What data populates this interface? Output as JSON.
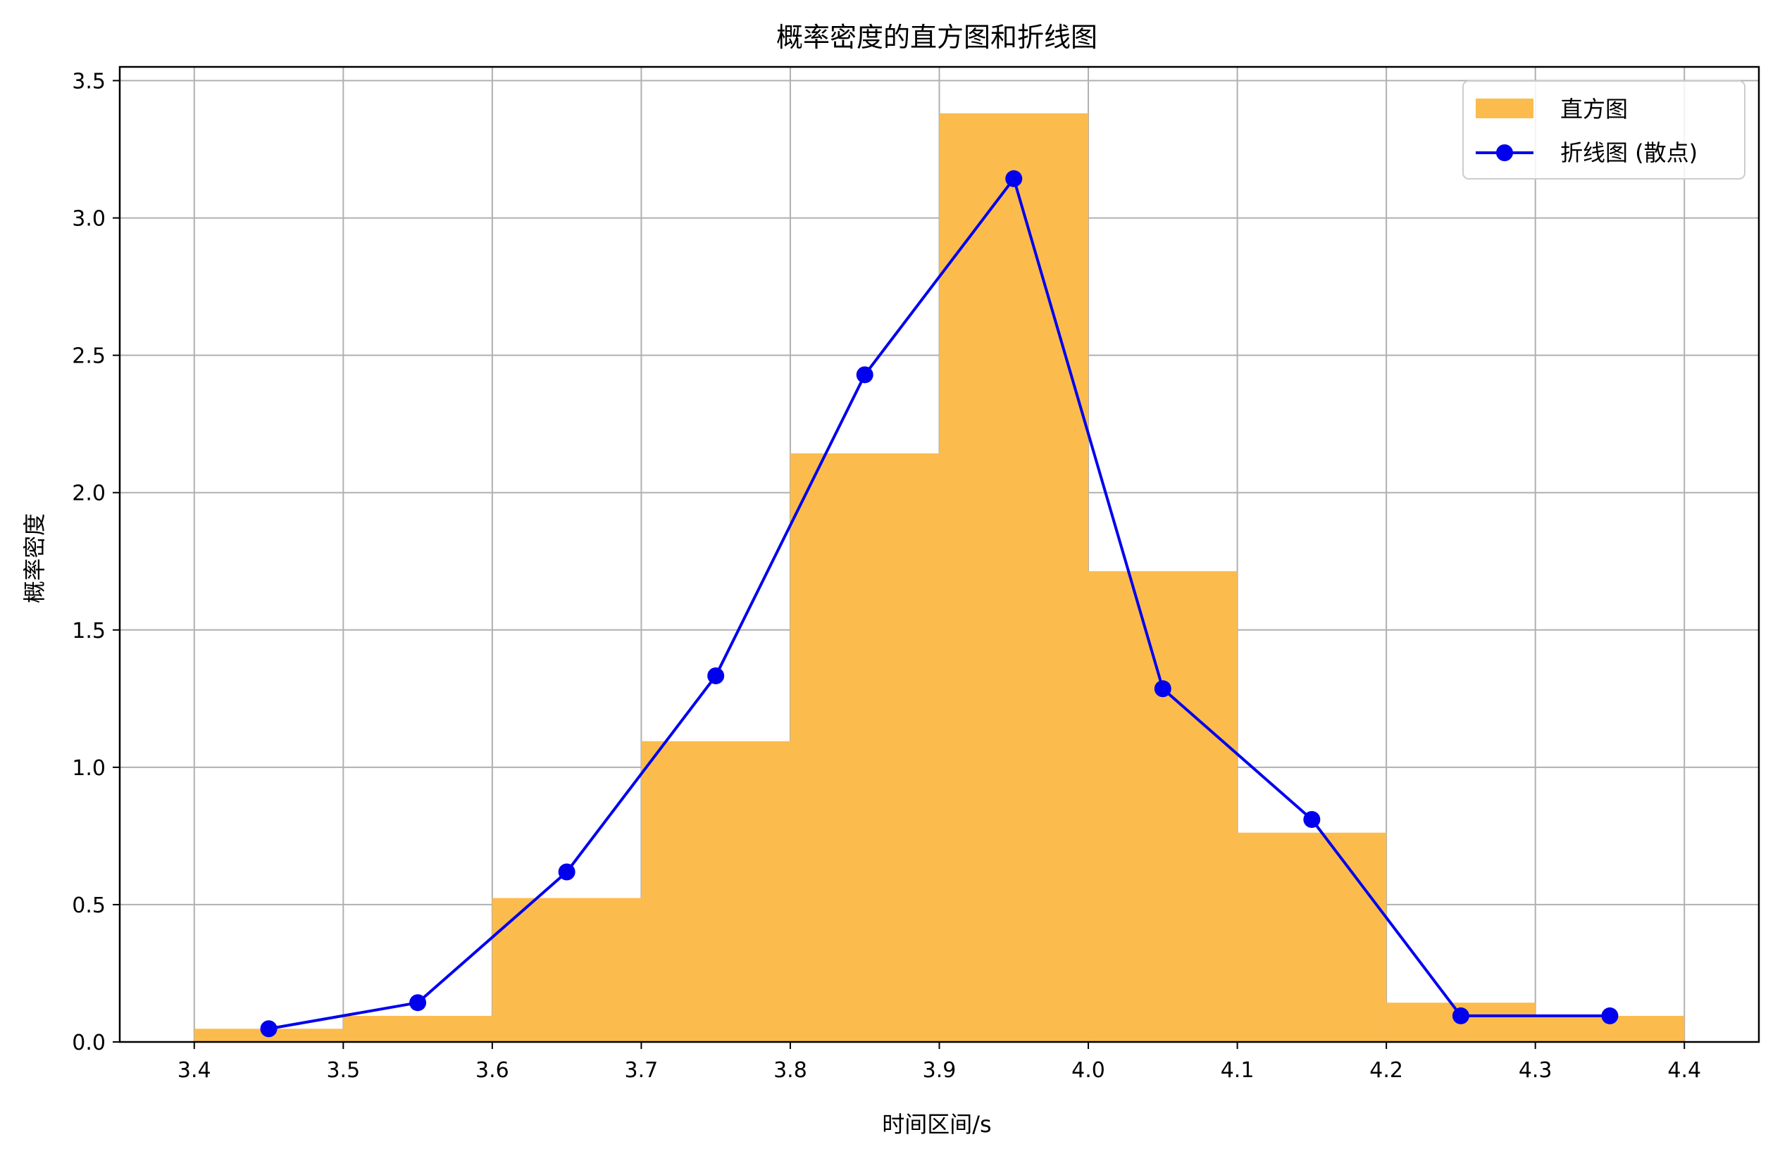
{
  "chart_data": {
    "type": "bar",
    "title": "概率密度的直方图和折线图",
    "xlabel": "时间区间/s",
    "ylabel": "概率密度",
    "xlim": [
      3.35,
      4.45
    ],
    "ylim": [
      0,
      3.55
    ],
    "xticks": [
      3.4,
      3.5,
      3.6,
      3.7,
      3.8,
      3.9,
      4.0,
      4.1,
      4.2,
      4.3,
      4.4
    ],
    "xtick_labels": [
      "3.4",
      "3.5",
      "3.6",
      "3.7",
      "3.8",
      "3.9",
      "4.0",
      "4.1",
      "4.2",
      "4.3",
      "4.4"
    ],
    "yticks": [
      0.0,
      0.5,
      1.0,
      1.5,
      2.0,
      2.5,
      3.0,
      3.5
    ],
    "ytick_labels": [
      "0.0",
      "0.5",
      "1.0",
      "1.5",
      "2.0",
      "2.5",
      "3.0",
      "3.5"
    ],
    "grid": true,
    "legend_position": "top-right",
    "histogram": {
      "name": "直方图",
      "color": "#fbbc4d",
      "bin_edges": [
        3.4,
        3.5,
        3.6,
        3.7,
        3.8,
        3.9,
        4.0,
        4.1,
        4.2,
        4.3,
        4.4
      ],
      "values": [
        0.048,
        0.095,
        0.524,
        1.095,
        2.143,
        3.381,
        1.714,
        0.762,
        0.143,
        0.095
      ]
    },
    "line": {
      "name": "折线图 (散点)",
      "color": "#0000ee",
      "x": [
        3.45,
        3.55,
        3.65,
        3.75,
        3.85,
        3.95,
        4.05,
        4.15,
        4.25,
        4.35
      ],
      "y": [
        0.048,
        0.143,
        0.619,
        1.333,
        2.429,
        3.143,
        1.286,
        0.81,
        0.095,
        0.095
      ]
    }
  }
}
